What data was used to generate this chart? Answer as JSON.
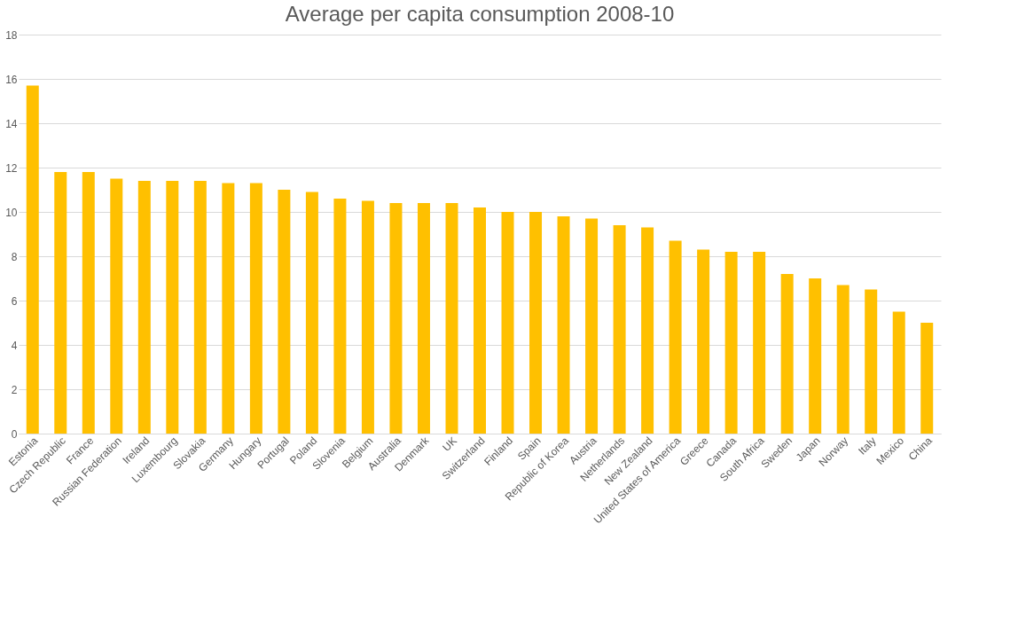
{
  "chart_data": {
    "type": "bar",
    "title": "Average per capita consumption 2008-10",
    "categories": [
      "Estonia",
      "Czech Republic",
      "France",
      "Russian Federation",
      "Ireland",
      "Luxembourg",
      "Slovakia",
      "Germany",
      "Hungary",
      "Portugal",
      "Poland",
      "Slovenia",
      "Belgium",
      "Australia",
      "Denmark",
      "UK",
      "Switzerland",
      "Finland",
      "Spain",
      "Republic of Korea",
      "Austria",
      "Netherlands",
      "New Zealand",
      "United States of America",
      "Greece",
      "Canada",
      "South Africa",
      "Sweden",
      "Japan",
      "Norway",
      "Italy",
      "Mexico",
      "China"
    ],
    "values": [
      15.7,
      11.8,
      11.8,
      11.5,
      11.4,
      11.4,
      11.4,
      11.3,
      11.3,
      11.0,
      10.9,
      10.6,
      10.5,
      10.4,
      10.4,
      10.4,
      10.2,
      10.0,
      10.0,
      9.8,
      9.7,
      9.4,
      9.3,
      8.7,
      8.3,
      8.2,
      8.2,
      7.2,
      7.0,
      6.7,
      6.5,
      5.5,
      5.0
    ],
    "color": "#ffc000",
    "ylim": [
      0,
      18
    ],
    "yticks": [
      0,
      2,
      4,
      6,
      8,
      10,
      12,
      14,
      16,
      18
    ],
    "grid": "y"
  }
}
